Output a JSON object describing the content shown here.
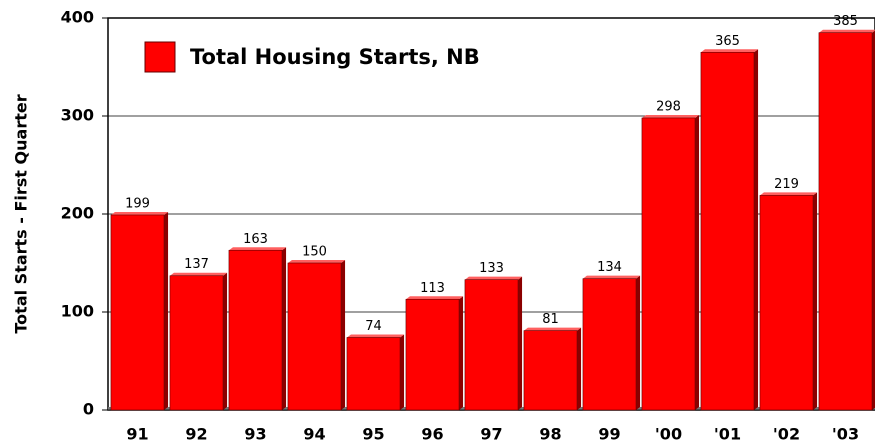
{
  "chart_data": {
    "type": "bar",
    "y_axis_label": "Total Starts - First Quarter",
    "categories": [
      "91",
      "92",
      "93",
      "94",
      "95",
      "96",
      "97",
      "98",
      "99",
      "'00",
      "'01",
      "'02",
      "'03"
    ],
    "series": [
      {
        "name": "Total Housing Starts, NB",
        "color": "#ff0000",
        "values": [
          199,
          137,
          163,
          150,
          74,
          113,
          133,
          81,
          134,
          298,
          365,
          219,
          385
        ]
      }
    ],
    "ylim": [
      0,
      400
    ],
    "yticks": [
      0,
      100,
      200,
      300,
      400
    ],
    "grid": true,
    "legend": "top-left"
  }
}
